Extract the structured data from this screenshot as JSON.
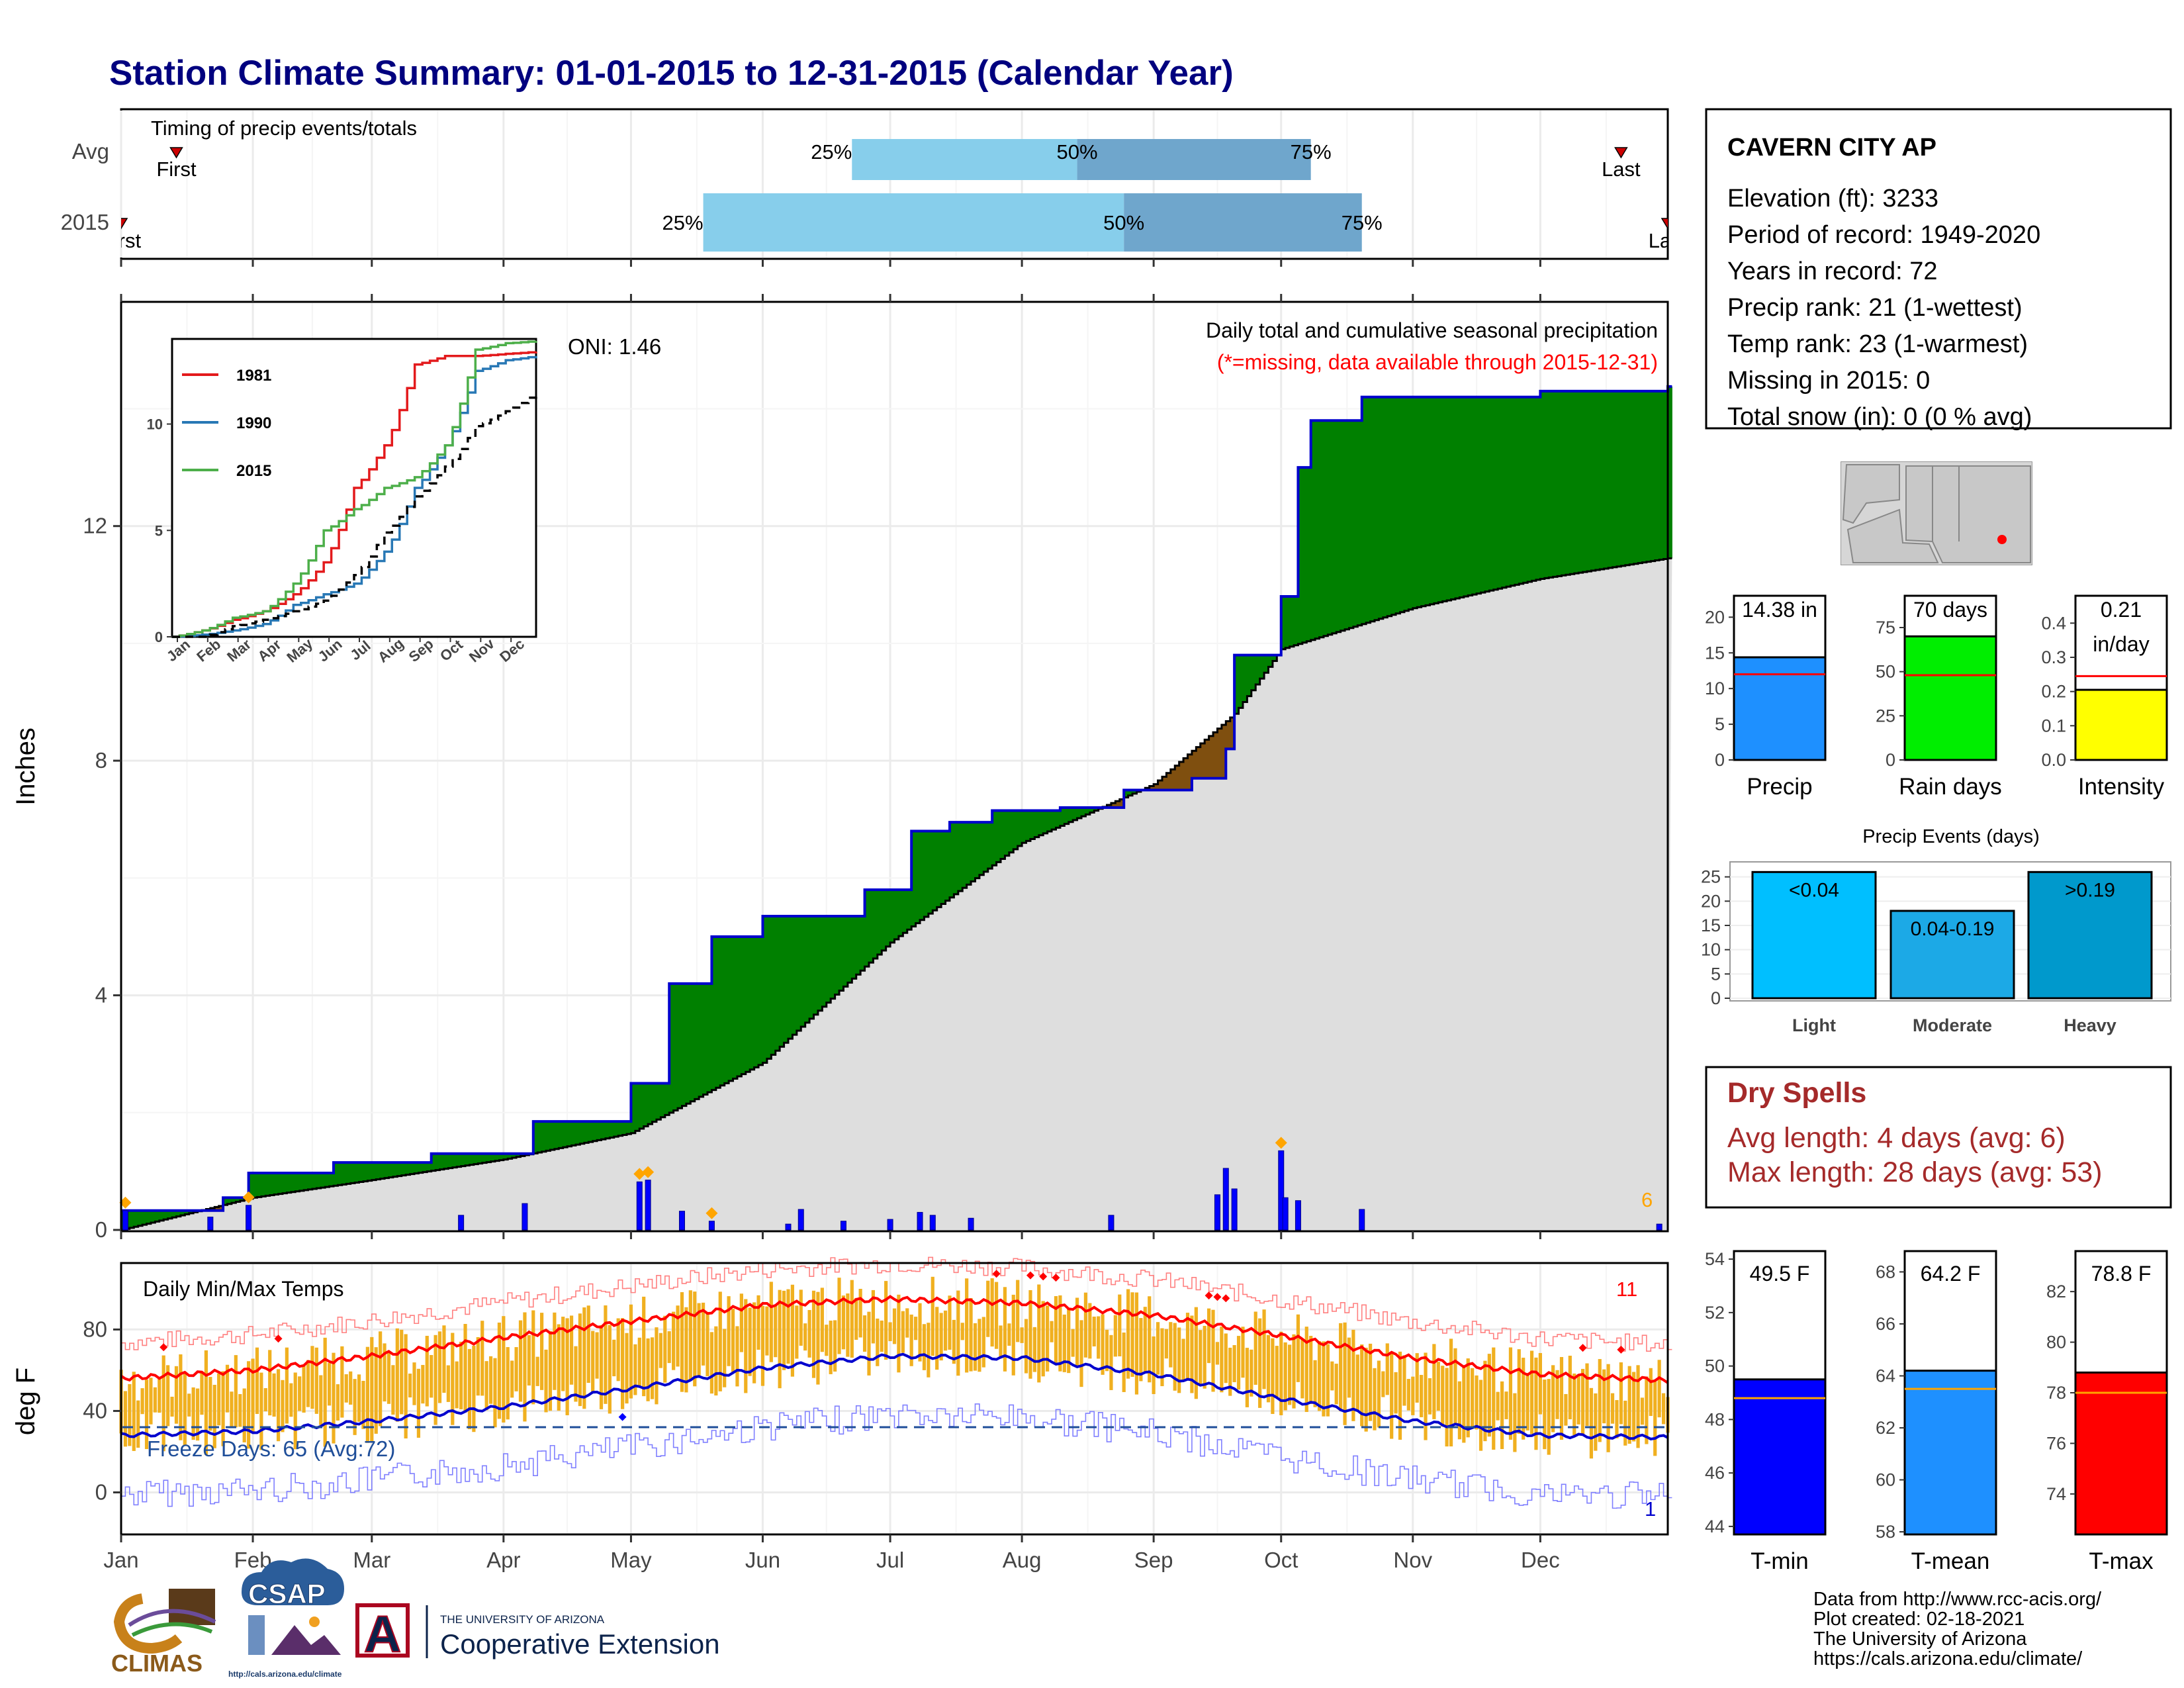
{
  "title": "Station Climate Summary: 01-01-2015 to 12-31-2015 (Calendar Year)",
  "station": {
    "name": "CAVERN CITY AP",
    "lines": [
      "Elevation (ft): 3233",
      "Period of record: 1949-2020",
      "Years in record: 72",
      "Precip rank: 21 (1-wettest)",
      "Temp rank: 23 (1-warmest)",
      "Missing in 2015: 0",
      "Total snow (in): 0 (0 % avg)"
    ]
  },
  "months": [
    "Jan",
    "Feb",
    "Mar",
    "Apr",
    "May",
    "Jun",
    "Jul",
    "Aug",
    "Sep",
    "Oct",
    "Nov",
    "Dec"
  ],
  "timing": {
    "label": "Timing of precip events/totals",
    "rows": [
      "Avg",
      "2015"
    ],
    "first_label": "First",
    "last_label": "Last",
    "pct_labels": [
      "25%",
      "50%",
      "75%"
    ],
    "avg": {
      "first_doy": 14,
      "p25_doy": 173,
      "p50_doy": 226,
      "p75_doy": 281,
      "last_doy": 354
    },
    "y2015": {
      "first_doy": 1,
      "p25_doy": 138,
      "p50_doy": 237,
      "p75_doy": 293,
      "last_doy": 365
    }
  },
  "precip_panel": {
    "title": "Daily total and cumulative seasonal precipitation",
    "subtitle": "(*=missing, data available through 2015-12-31)",
    "ylabel": "Inches",
    "oni": "ONI: 1.46",
    "count_label": "6",
    "yticks": [
      "0",
      "4",
      "8",
      "12"
    ],
    "ylim": [
      0,
      15.8
    ]
  },
  "inset": {
    "series": [
      "1981",
      "1990",
      "2015"
    ],
    "yticks": [
      "0",
      "5",
      "10"
    ],
    "colors": {
      "1981": "#e31a1c",
      "1990": "#2878b5",
      "2015": "#4daf4a"
    }
  },
  "temp_panel": {
    "title": "Daily Min/Max Temps",
    "ylabel": "deg F",
    "freeze_label": "Freeze Days: 65 (Avg:72)",
    "yticks": [
      "0",
      "40",
      "80"
    ],
    "ylim": [
      -20,
      112
    ],
    "record_high_count": "11",
    "record_low_count": "1"
  },
  "bars_precip": [
    {
      "label": "Precip",
      "value_text": "14.38 in",
      "value": 14.38,
      "avg": 12,
      "ymax": 23,
      "ticks": [
        "0",
        "5",
        "10",
        "15",
        "20"
      ],
      "color": "#1e90ff"
    },
    {
      "label": "Rain days",
      "value_text": "70 days",
      "value": 70,
      "avg": 48,
      "ymax": 93,
      "ticks": [
        "0",
        "25",
        "50",
        "75"
      ],
      "color": "#00ee00"
    },
    {
      "label": "Intensity",
      "value_text": "0.21|in/day",
      "value": 0.205,
      "avg": 0.245,
      "ymax": 0.48,
      "ticks": [
        "0.0",
        "0.1",
        "0.2",
        "0.3",
        "0.4"
      ],
      "color": "#ffff00"
    }
  ],
  "precip_events": {
    "title": "Precip Events (days)",
    "ticks": [
      "0",
      "5",
      "10",
      "15",
      "20",
      "25"
    ],
    "bars": [
      {
        "label": "Light",
        "inner": "<0.04",
        "value": 26,
        "color": "#00bfff"
      },
      {
        "label": "Moderate",
        "inner": "0.04-0.19",
        "value": 18,
        "color": "#1ca9e6"
      },
      {
        "label": "Heavy",
        "inner": ">0.19",
        "value": 26,
        "color": "#0099cc"
      }
    ]
  },
  "dry_spells": {
    "title": "Dry Spells",
    "lines": [
      "Avg length: 4 days (avg: 6)",
      "Max length: 28 days (avg: 53)"
    ]
  },
  "bars_temp": [
    {
      "label": "T-min",
      "value_text": "49.5 F",
      "value": 49.5,
      "avg": 48.8,
      "ymin": 43.7,
      "ymax": 54.3,
      "ticks": [
        "44",
        "46",
        "48",
        "50",
        "52",
        "54"
      ],
      "color": "#0000ff"
    },
    {
      "label": "T-mean",
      "value_text": "64.2 F",
      "value": 64.2,
      "avg": 63.5,
      "ymin": 57.9,
      "ymax": 68.8,
      "ticks": [
        "58",
        "60",
        "62",
        "64",
        "66",
        "68"
      ],
      "color": "#1e90ff"
    },
    {
      "label": "T-max",
      "value_text": "78.8 F",
      "value": 78.8,
      "avg": 78,
      "ymin": 72.4,
      "ymax": 83.6,
      "ticks": [
        "74",
        "76",
        "78",
        "80",
        "82"
      ],
      "color": "#ff0000"
    }
  ],
  "footer": {
    "credits": [
      "Data from http://www.rcc-acis.org/",
      "Plot created: 02-18-2021",
      "The University of Arizona",
      "https://cals.arizona.edu/climate/"
    ],
    "logo_climas": "CLIMAS",
    "logo_csap": "CSAP",
    "logo_csap_url": "http://cals.arizona.edu/climate",
    "logo_ua_letter": "A",
    "ua_line1": "THE UNIVERSITY OF ARIZONA",
    "ua_line2": "Cooperative Extension"
  },
  "colors": {
    "title": "#00007f",
    "surplus": "#008000",
    "deficit": "#7f4f0f",
    "normal_fill": "#dedede",
    "cum_line": "#0000cd",
    "tmax_line": "#ff0000",
    "tmin_line": "#0000cd",
    "temp_bars": "#f0b020",
    "dry_spells": "#a52a2a"
  },
  "chart_data": {
    "type": "area",
    "x_units": "calendar date 2015 (month-day)",
    "cumulative_2015": {
      "x": [
        "01-01",
        "01-25",
        "01-31",
        "02-20",
        "03-15",
        "04-08",
        "05-01",
        "05-10",
        "05-20",
        "06-01",
        "06-25",
        "07-06",
        "07-15",
        "07-25",
        "08-10",
        "08-25",
        "09-10",
        "09-18",
        "09-20",
        "10-01",
        "10-05",
        "10-08",
        "10-20",
        "11-01",
        "12-01",
        "12-31"
      ],
      "y": [
        0.33,
        0.55,
        0.97,
        1.15,
        1.3,
        1.85,
        2.5,
        4.2,
        5.0,
        5.35,
        5.8,
        6.8,
        6.95,
        7.15,
        7.2,
        7.5,
        7.7,
        8.2,
        9.8,
        10.8,
        13.0,
        13.8,
        14.2,
        14.2,
        14.3,
        14.38
      ]
    },
    "normal_cumulative": {
      "x": [
        "01-01",
        "02-01",
        "03-01",
        "04-01",
        "05-01",
        "06-01",
        "07-01",
        "08-01",
        "09-01",
        "09-20",
        "10-01",
        "11-01",
        "12-01",
        "12-31"
      ],
      "y": [
        0.0,
        0.55,
        0.85,
        1.2,
        1.65,
        2.85,
        4.9,
        6.6,
        7.6,
        8.8,
        9.9,
        10.6,
        11.1,
        11.45
      ]
    },
    "daily_precip": [
      {
        "date": "01-02",
        "value": 0.33
      },
      {
        "date": "01-22",
        "value": 0.22
      },
      {
        "date": "01-31",
        "value": 0.42
      },
      {
        "date": "03-22",
        "value": 0.25
      },
      {
        "date": "04-06",
        "value": 0.45
      },
      {
        "date": "05-03",
        "value": 0.82
      },
      {
        "date": "05-05",
        "value": 0.85
      },
      {
        "date": "05-13",
        "value": 0.32
      },
      {
        "date": "05-20",
        "value": 0.15
      },
      {
        "date": "06-07",
        "value": 0.1
      },
      {
        "date": "06-10",
        "value": 0.35
      },
      {
        "date": "06-20",
        "value": 0.15
      },
      {
        "date": "07-01",
        "value": 0.18
      },
      {
        "date": "07-08",
        "value": 0.3
      },
      {
        "date": "07-11",
        "value": 0.25
      },
      {
        "date": "07-20",
        "value": 0.2
      },
      {
        "date": "08-22",
        "value": 0.25
      },
      {
        "date": "09-16",
        "value": 0.6
      },
      {
        "date": "09-18",
        "value": 1.05
      },
      {
        "date": "09-20",
        "value": 0.7
      },
      {
        "date": "10-01",
        "value": 1.35
      },
      {
        "date": "10-02",
        "value": 0.55
      },
      {
        "date": "10-05",
        "value": 0.5
      },
      {
        "date": "10-20",
        "value": 0.35
      },
      {
        "date": "12-29",
        "value": 0.1
      }
    ],
    "insets": [
      {
        "name": "1981",
        "x": [
          "Jan",
          "Feb",
          "Mar",
          "Apr",
          "May",
          "Jun",
          "Jul",
          "Aug",
          "Sep",
          "Oct",
          "Nov",
          "Dec"
        ],
        "y": [
          0.3,
          0.8,
          1.2,
          2.0,
          3.5,
          7.0,
          9.0,
          12.8,
          13.2,
          13.2,
          13.3,
          13.4
        ]
      },
      {
        "name": "1990",
        "x": [
          "Jan",
          "Feb",
          "Mar",
          "Apr",
          "May",
          "Jun",
          "Jul",
          "Aug",
          "Sep",
          "Oct",
          "Nov",
          "Dec"
        ],
        "y": [
          0.1,
          0.3,
          0.6,
          1.5,
          2.0,
          2.5,
          4.0,
          7.0,
          9.0,
          12.5,
          13.0,
          13.2
        ]
      },
      {
        "name": "2015",
        "x": [
          "Jan",
          "Feb",
          "Mar",
          "Apr",
          "May",
          "Jun",
          "Jul",
          "Aug",
          "Sep",
          "Oct",
          "Nov",
          "Dec"
        ],
        "y": [
          0.3,
          0.9,
          1.2,
          2.5,
          5.0,
          6.0,
          7.0,
          7.5,
          9.0,
          13.5,
          13.8,
          13.9
        ]
      },
      {
        "name": "normal",
        "x": [
          "Jan",
          "Feb",
          "Mar",
          "Apr",
          "May",
          "Jun",
          "Jul",
          "Aug",
          "Sep",
          "Oct",
          "Nov",
          "Dec"
        ],
        "y": [
          0.0,
          0.5,
          0.8,
          1.2,
          1.7,
          2.9,
          4.9,
          6.6,
          8.0,
          9.9,
          10.6,
          11.5
        ]
      }
    ],
    "temps": {
      "normal_tmax_F": {
        "x": [
          "01-01",
          "02-01",
          "03-01",
          "04-01",
          "05-01",
          "06-01",
          "07-01",
          "08-01",
          "09-01",
          "10-01",
          "11-01",
          "12-01",
          "12-31"
        ],
        "y": [
          56,
          60,
          67,
          76,
          84,
          92,
          95,
          93,
          87,
          77,
          66,
          58,
          55
        ]
      },
      "normal_tmin_F": {
        "x": [
          "01-01",
          "02-01",
          "03-01",
          "04-01",
          "05-01",
          "06-01",
          "07-01",
          "08-01",
          "09-01",
          "10-01",
          "11-01",
          "12-01",
          "12-31"
        ],
        "y": [
          28,
          30,
          35,
          42,
          51,
          61,
          67,
          66,
          58,
          46,
          35,
          28,
          27
        ]
      },
      "freeze_line_F": 32
    }
  }
}
